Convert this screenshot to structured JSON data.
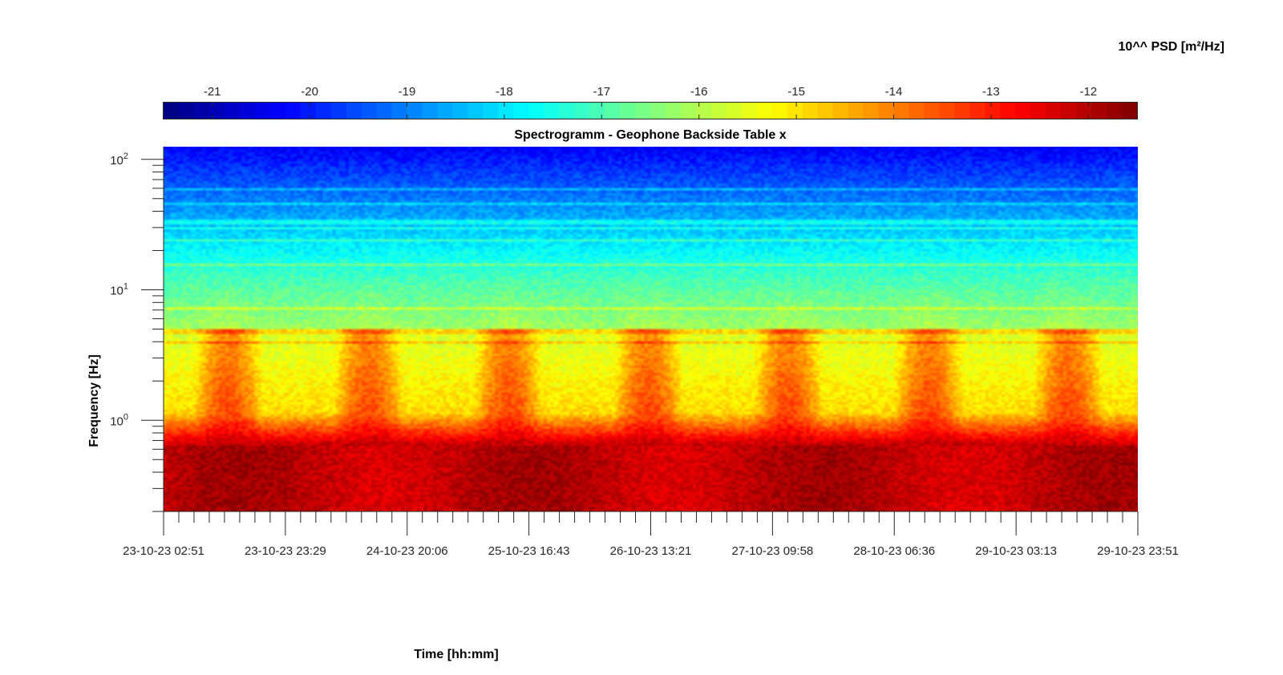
{
  "chart_data": {
    "type": "heatmap",
    "title": "Spectrogramm - Geophone Backside Table x",
    "xlabel": "Time [hh:mm]",
    "ylabel": "Frequency [Hz]",
    "colorbar_label": "10^^ PSD [m²/Hz]",
    "colormap": "jet",
    "color_range": [
      -21.5,
      -11.5
    ],
    "colorbar_ticks": [
      -21,
      -20,
      -19,
      -18,
      -17,
      -16,
      -15,
      -14,
      -13,
      -12
    ],
    "colorbar_tick_labels": [
      "-21",
      "-20",
      "-19",
      "-18",
      "-17",
      "-16",
      "-15",
      "-14",
      "-13",
      "-12"
    ],
    "colorbar_position": "top",
    "y_scale": "log",
    "y_range": [
      0.2,
      125
    ],
    "y_ticks": [
      1,
      10,
      100
    ],
    "y_tick_labels": [
      {
        "base": "10",
        "exp": "0"
      },
      {
        "base": "10",
        "exp": "1"
      },
      {
        "base": "10",
        "exp": "2"
      }
    ],
    "x_range": [
      "23-10-23 02:51",
      "29-10-23 23:51"
    ],
    "x_tick_labels": [
      "23-10-23 02:51",
      "23-10-23 23:29",
      "24-10-23 20:06",
      "25-10-23 16:43",
      "26-10-23 13:21",
      "27-10-23 09:58",
      "28-10-23 06:36",
      "29-10-23 03:13",
      "29-10-23 23:51"
    ],
    "grid": false,
    "description_of_field": {
      "low_band_0.2_to_0.7Hz": [
        -12.3,
        -11.8
      ],
      "band_1_to_4Hz_day": [
        -14.0,
        -13.3
      ],
      "band_1_to_4Hz_night": [
        -15.2,
        -14.6
      ],
      "band_10Hz": [
        -17.0,
        -16.6
      ],
      "band_100Hz": [
        -20.5,
        -20.0
      ]
    }
  }
}
